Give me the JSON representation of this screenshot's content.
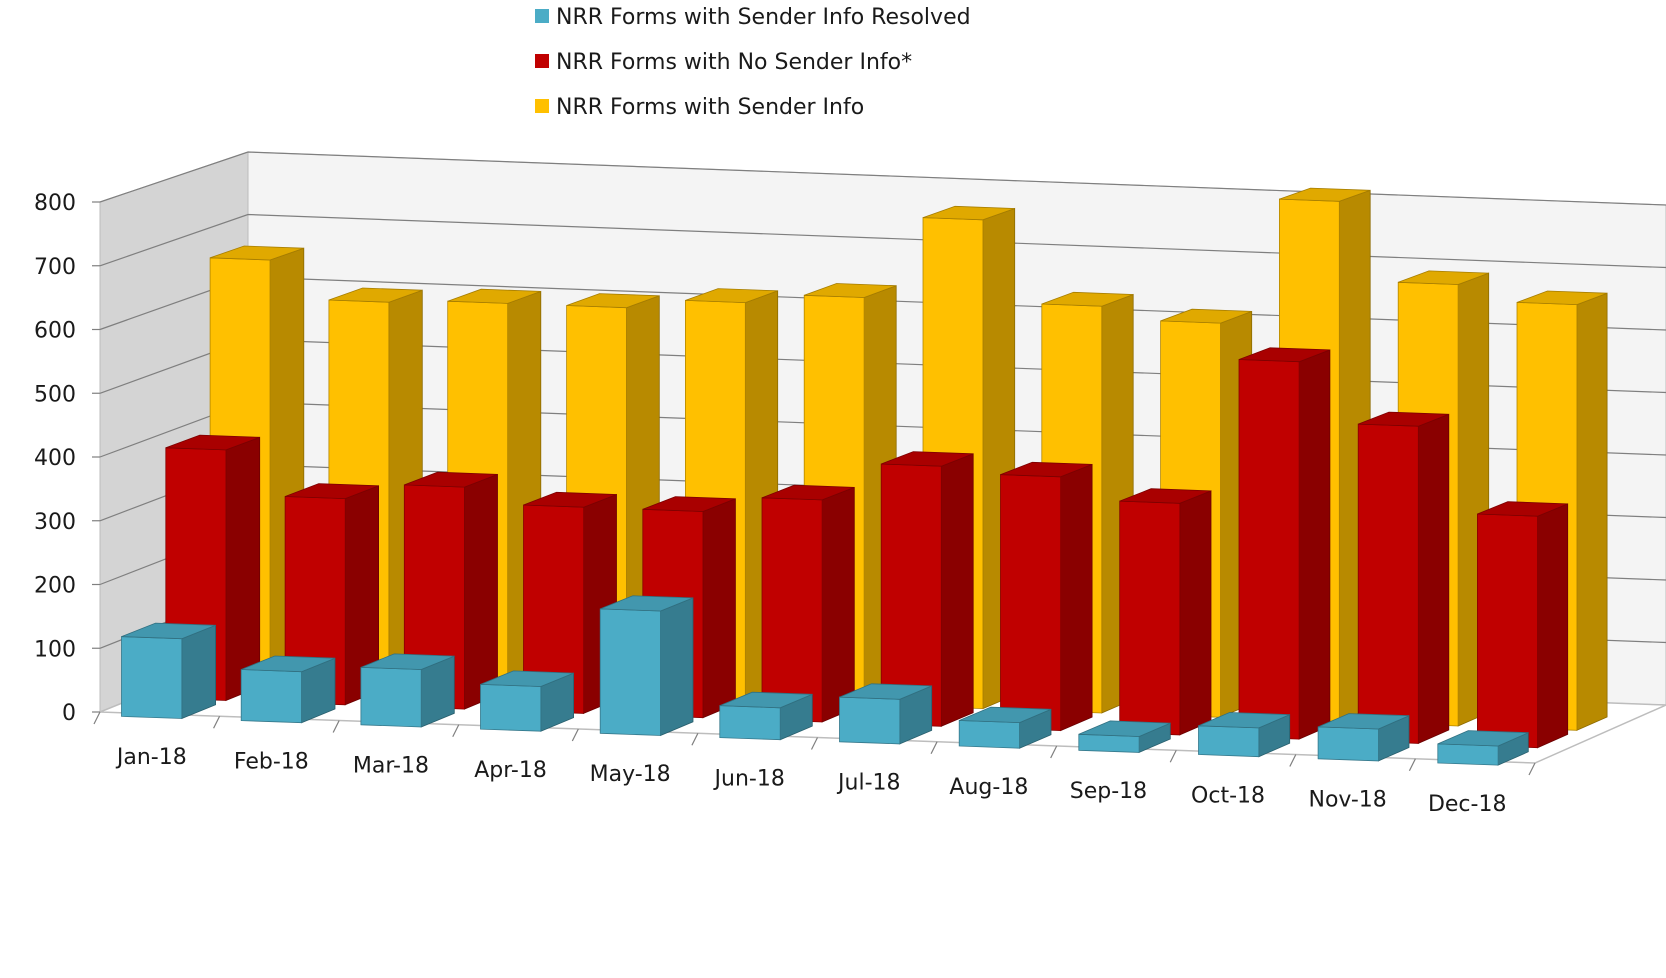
{
  "chart_data": {
    "type": "bar",
    "style": "3d-clustered-depth",
    "title": "",
    "xlabel": "",
    "ylabel": "",
    "ylim": [
      0,
      800
    ],
    "yticks": [
      0,
      100,
      200,
      300,
      400,
      500,
      600,
      700,
      800
    ],
    "grid": true,
    "legend_position": "top",
    "categories": [
      "Jan-18",
      "Feb-18",
      "Mar-18",
      "Apr-18",
      "May-18",
      "Jun-18",
      "Jul-18",
      "Aug-18",
      "Sep-18",
      "Oct-18",
      "Nov-18",
      "Dec-18"
    ],
    "series": [
      {
        "name": "NRR Forms with Sender Info Resolved",
        "color": "#4bacc6",
        "values": [
          125,
          80,
          90,
          70,
          195,
          50,
          70,
          40,
          25,
          45,
          50,
          30
        ]
      },
      {
        "name": "NRR Forms with No Sender Info*",
        "color": "#c00000",
        "values": [
          395,
          325,
          350,
          325,
          325,
          350,
          410,
          400,
          365,
          595,
          500,
          365
        ]
      },
      {
        "name": "NRR Forms with Sender Info",
        "color": "#ffc000",
        "values": [
          670,
          610,
          615,
          615,
          630,
          645,
          775,
          645,
          625,
          825,
          700,
          675
        ]
      }
    ]
  }
}
